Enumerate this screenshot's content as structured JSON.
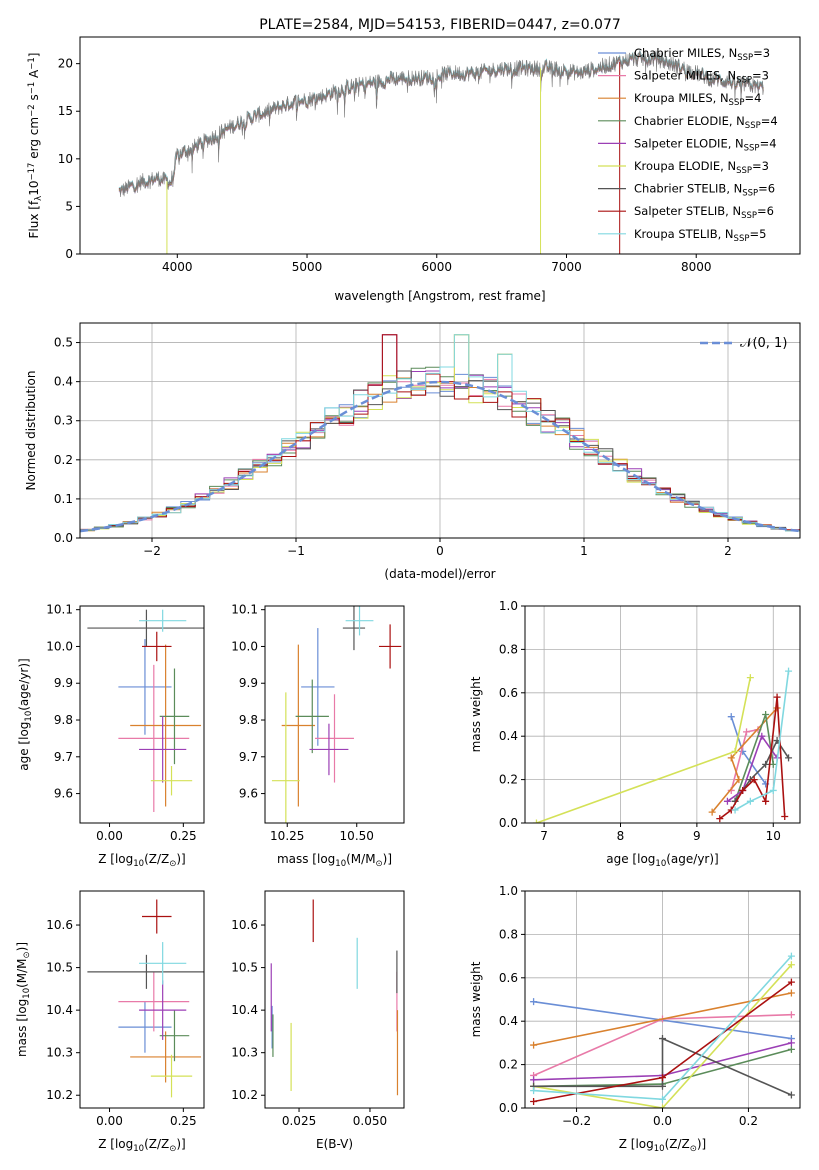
{
  "chart_data": [
    {
      "type": "line",
      "title": "PLATE=2584, MJD=54153, FIBERID=0447, z=0.077",
      "xlabel": "wavelength [Angstrom, rest frame]",
      "ylabel_parts": [
        "Flux [f",
        "λ",
        "10",
        "−17",
        " erg cm",
        "−2",
        " s",
        "−1",
        " A",
        "−1",
        "]"
      ],
      "xlim": [
        3250,
        8800
      ],
      "ylim": [
        0,
        22.8
      ],
      "xticks": [
        4000,
        5000,
        6000,
        7000,
        8000
      ],
      "yticks": [
        0,
        5,
        10,
        15,
        20
      ],
      "legend_placement": "upper-right",
      "series": [
        {
          "name": "Chabrier MILES, N",
          "nssp": "3",
          "color": "#6a8ed6"
        },
        {
          "name": "Salpeter MILES, N",
          "nssp": "3",
          "color": "#e87aa8"
        },
        {
          "name": "Kroupa MILES, N",
          "nssp": "4",
          "color": "#d9812e"
        },
        {
          "name": "Chabrier ELODIE, N",
          "nssp": "4",
          "color": "#5b8c5a"
        },
        {
          "name": "Salpeter ELODIE, N",
          "nssp": "4",
          "color": "#9b3fb5"
        },
        {
          "name": "Kroupa ELODIE, N",
          "nssp": "3",
          "color": "#d4e157"
        },
        {
          "name": "Chabrier STELIB, N",
          "nssp": "6",
          "color": "#555555"
        },
        {
          "name": "Salpeter STELIB, N",
          "nssp": "6",
          "color": "#aa1111"
        },
        {
          "name": "Kroupa STELIB, N",
          "nssp": "5",
          "color": "#80d8e0"
        }
      ],
      "continuum_anchor_points": {
        "x": [
          3550,
          3700,
          3850,
          3950,
          4000,
          4100,
          4300,
          4500,
          4700,
          4900,
          5100,
          5300,
          5500,
          5700,
          5900,
          6100,
          6300,
          6500,
          6700,
          6900,
          7100,
          7300,
          7500,
          7700,
          7900,
          8100,
          8300,
          8500
        ],
        "y": [
          6.5,
          7.5,
          8.0,
          7.5,
          10.5,
          11.0,
          12.5,
          14.0,
          15.0,
          16.0,
          16.5,
          17.5,
          18.0,
          18.5,
          18.5,
          19.0,
          19.0,
          19.5,
          19.5,
          19.5,
          19.0,
          19.8,
          20.5,
          20.5,
          19.5,
          18.5,
          18.0,
          17.5
        ]
      },
      "noise_amplitude": 0.9
    },
    {
      "type": "histogram",
      "xlabel": "(data-model)/error",
      "ylabel": "Normed distribution",
      "xlim": [
        -2.5,
        2.5
      ],
      "ylim": [
        0,
        0.55
      ],
      "xticks": [
        -2,
        -1,
        0,
        1,
        2
      ],
      "ytick_labels": [
        "0.0",
        "0.1",
        "0.2",
        "0.3",
        "0.4",
        "0.5"
      ],
      "grid": true,
      "bin_width": 0.1,
      "gaussian_label": "𝒩(0, 1)",
      "gaussian_color": "#6a8ed6",
      "legend_placement": "upper-right",
      "notable_peaks": [
        {
          "x": -0.35,
          "y": 0.52
        },
        {
          "x": 0.15,
          "y": 0.52
        },
        {
          "x": 0.45,
          "y": 0.47
        }
      ]
    },
    {
      "type": "scatter",
      "variant": "errorbar",
      "xlabel": "Z [log10(Z/Z⊙)]",
      "ylabel": "age  [log10(age/yr)]",
      "xlim": [
        -0.1,
        0.32
      ],
      "ylim": [
        9.52,
        10.11
      ],
      "xtick_labels": [
        "0.00",
        "0.25"
      ],
      "ytick_labels": [
        "9.6",
        "9.7",
        "9.8",
        "9.9",
        "10.0",
        "10.1"
      ],
      "points": [
        {
          "color": "#6a8ed6",
          "x": 0.12,
          "xerr": 0.09,
          "y": 9.89,
          "yerr": 0.13
        },
        {
          "color": "#e87aa8",
          "x": 0.15,
          "xerr": 0.12,
          "y": 9.75,
          "yerr": 0.2
        },
        {
          "color": "#d9812e",
          "x": 0.19,
          "xerr": 0.12,
          "y": 9.785,
          "yerr": 0.22
        },
        {
          "color": "#5b8c5a",
          "x": 0.22,
          "xerr": 0.05,
          "y": 9.81,
          "yerr": 0.13
        },
        {
          "color": "#9b3fb5",
          "x": 0.18,
          "xerr": 0.08,
          "y": 9.72,
          "yerr": 0.09
        },
        {
          "color": "#d4e157",
          "x": 0.21,
          "xerr": 0.07,
          "y": 9.635,
          "yerr": 0.04
        },
        {
          "color": "#555555",
          "x": 0.125,
          "xerr": 0.2,
          "y": 10.05,
          "yerr": 0.05
        },
        {
          "color": "#aa1111",
          "x": 0.16,
          "xerr": 0.05,
          "y": 10.0,
          "yerr": 0.04
        },
        {
          "color": "#80d8e0",
          "x": 0.18,
          "xerr": 0.08,
          "y": 10.07,
          "yerr": 0.03
        }
      ]
    },
    {
      "type": "scatter",
      "variant": "errorbar",
      "xlabel": "mass [log10(M/M⊙)]",
      "ylabel": "",
      "xlim": [
        10.17,
        10.67
      ],
      "ylim": [
        9.52,
        10.11
      ],
      "xtick_labels": [
        "10.25",
        "10.50"
      ],
      "ytick_labels": [
        "9.6",
        "9.7",
        "9.8",
        "9.9",
        "10.0",
        "10.1"
      ],
      "points": [
        {
          "color": "#6a8ed6",
          "x": 10.36,
          "xerr": 0.06,
          "y": 9.89,
          "yerr": 0.16
        },
        {
          "color": "#e87aa8",
          "x": 10.42,
          "xerr": 0.07,
          "y": 9.75,
          "yerr": 0.12
        },
        {
          "color": "#d9812e",
          "x": 10.29,
          "xerr": 0.06,
          "y": 9.785,
          "yerr": 0.22
        },
        {
          "color": "#5b8c5a",
          "x": 10.34,
          "xerr": 0.06,
          "y": 9.81,
          "yerr": 0.1
        },
        {
          "color": "#9b3fb5",
          "x": 10.4,
          "xerr": 0.07,
          "y": 9.72,
          "yerr": 0.07
        },
        {
          "color": "#d4e157",
          "x": 10.245,
          "xerr": 0.05,
          "y": 9.635,
          "yerr": 0.24
        },
        {
          "color": "#555555",
          "x": 10.49,
          "xerr": 0.04,
          "y": 10.05,
          "yerr": 0.06
        },
        {
          "color": "#aa1111",
          "x": 10.62,
          "xerr": 0.04,
          "y": 10.0,
          "yerr": 0.06
        },
        {
          "color": "#80d8e0",
          "x": 10.51,
          "xerr": 0.05,
          "y": 10.07,
          "yerr": 0.04
        }
      ]
    },
    {
      "type": "line",
      "xlabel": "age  [log10(age/yr)]",
      "ylabel": "mass weight",
      "xlim": [
        6.75,
        10.35
      ],
      "ylim": [
        0,
        1.0
      ],
      "xticks": [
        7,
        8,
        9,
        10
      ],
      "ytick_labels": [
        "0.0",
        "0.2",
        "0.4",
        "0.6",
        "0.8",
        "1.0"
      ],
      "grid": true,
      "series": [
        {
          "color": "#6a8ed6",
          "x": [
            9.45,
            9.6,
            9.9
          ],
          "y": [
            0.49,
            0.33,
            0.18
          ]
        },
        {
          "color": "#e87aa8",
          "x": [
            9.45,
            9.65,
            9.8
          ],
          "y": [
            0.15,
            0.42,
            0.43
          ]
        },
        {
          "color": "#d9812e",
          "x": [
            9.2,
            9.55,
            9.45,
            10.05
          ],
          "y": [
            0.05,
            0.2,
            0.3,
            0.53
          ]
        },
        {
          "color": "#5b8c5a",
          "x": [
            9.5,
            9.9,
            10.0
          ],
          "y": [
            0.1,
            0.5,
            0.27
          ]
        },
        {
          "color": "#9b3fb5",
          "x": [
            9.4,
            9.6,
            9.85,
            10.05
          ],
          "y": [
            0.1,
            0.15,
            0.4,
            0.3
          ]
        },
        {
          "color": "#d4e157",
          "x": [
            6.9,
            9.5,
            9.7
          ],
          "y": [
            0.0,
            0.33,
            0.67
          ]
        },
        {
          "color": "#555555",
          "x": [
            9.5,
            9.7,
            9.9,
            10.05,
            10.2
          ],
          "y": [
            0.1,
            0.2,
            0.27,
            0.38,
            0.3
          ]
        },
        {
          "color": "#aa1111",
          "x": [
            9.3,
            9.45,
            9.6,
            9.75,
            9.9,
            10.05,
            10.15
          ],
          "y": [
            0.02,
            0.06,
            0.15,
            0.2,
            0.1,
            0.58,
            0.03
          ]
        },
        {
          "color": "#80d8e0",
          "x": [
            9.5,
            9.7,
            10.0,
            10.2
          ],
          "y": [
            0.06,
            0.1,
            0.15,
            0.7
          ]
        }
      ]
    },
    {
      "type": "scatter",
      "variant": "errorbar",
      "xlabel": "Z [log10(Z/Z⊙)]",
      "ylabel": "mass [log10(M/M⊙)]",
      "xlim": [
        -0.1,
        0.32
      ],
      "ylim": [
        10.17,
        10.68
      ],
      "xtick_labels": [
        "0.00",
        "0.25"
      ],
      "ytick_labels": [
        "10.2",
        "10.3",
        "10.4",
        "10.5",
        "10.6"
      ],
      "points": [
        {
          "color": "#6a8ed6",
          "x": 0.12,
          "xerr": 0.09,
          "y": 10.36,
          "yerr": 0.06
        },
        {
          "color": "#e87aa8",
          "x": 0.15,
          "xerr": 0.12,
          "y": 10.42,
          "yerr": 0.07
        },
        {
          "color": "#d9812e",
          "x": 0.19,
          "xerr": 0.12,
          "y": 10.29,
          "yerr": 0.06
        },
        {
          "color": "#5b8c5a",
          "x": 0.22,
          "xerr": 0.05,
          "y": 10.34,
          "yerr": 0.06
        },
        {
          "color": "#9b3fb5",
          "x": 0.18,
          "xerr": 0.08,
          "y": 10.4,
          "yerr": 0.07
        },
        {
          "color": "#d4e157",
          "x": 0.21,
          "xerr": 0.07,
          "y": 10.245,
          "yerr": 0.05
        },
        {
          "color": "#555555",
          "x": 0.125,
          "xerr": 0.2,
          "y": 10.49,
          "yerr": 0.04
        },
        {
          "color": "#aa1111",
          "x": 0.16,
          "xerr": 0.05,
          "y": 10.62,
          "yerr": 0.04
        },
        {
          "color": "#80d8e0",
          "x": 0.18,
          "xerr": 0.08,
          "y": 10.51,
          "yerr": 0.05
        }
      ]
    },
    {
      "type": "scatter",
      "variant": "errorbar",
      "xlabel": "E(B-V)",
      "ylabel": "",
      "xlim": [
        0.013,
        0.062
      ],
      "ylim": [
        10.17,
        10.68
      ],
      "xtick_labels": [
        "0.025",
        "0.050"
      ],
      "ytick_labels": [
        "10.2",
        "10.3",
        "10.4",
        "10.5",
        "10.6"
      ],
      "points": [
        {
          "color": "#6a8ed6",
          "x": 0.0155,
          "xerr": 0,
          "y": 10.36,
          "yerr": 0.05
        },
        {
          "color": "#e87aa8",
          "x": 0.0595,
          "xerr": 0,
          "y": 10.42,
          "yerr": 0.07
        },
        {
          "color": "#d9812e",
          "x": 0.0597,
          "xerr": 0,
          "y": 10.3,
          "yerr": 0.1
        },
        {
          "color": "#5b8c5a",
          "x": 0.0158,
          "xerr": 0,
          "y": 10.34,
          "yerr": 0.05
        },
        {
          "color": "#9b3fb5",
          "x": 0.0152,
          "xerr": 0,
          "y": 10.43,
          "yerr": 0.08
        },
        {
          "color": "#d4e157",
          "x": 0.0222,
          "xerr": 0,
          "y": 10.29,
          "yerr": 0.08
        },
        {
          "color": "#555555",
          "x": 0.0595,
          "xerr": 0,
          "y": 10.49,
          "yerr": 0.05
        },
        {
          "color": "#aa1111",
          "x": 0.03,
          "xerr": 0,
          "y": 10.61,
          "yerr": 0.05
        },
        {
          "color": "#80d8e0",
          "x": 0.0455,
          "xerr": 0,
          "y": 10.51,
          "yerr": 0.06
        }
      ]
    },
    {
      "type": "line",
      "xlabel": "Z [log10(Z/Z⊙)]",
      "ylabel": "mass weight",
      "xlim": [
        -0.32,
        0.32
      ],
      "ylim": [
        0,
        1.0
      ],
      "xticks": [
        -0.2,
        0.0,
        0.2
      ],
      "xtick_labels": [
        "−0.2",
        "0.0",
        "0.2"
      ],
      "ytick_labels": [
        "0.0",
        "0.2",
        "0.4",
        "0.6",
        "0.8",
        "1.0"
      ],
      "grid": true,
      "series": [
        {
          "color": "#6a8ed6",
          "x": [
            -0.3,
            0.3
          ],
          "y": [
            0.49,
            0.32
          ]
        },
        {
          "color": "#e87aa8",
          "x": [
            -0.3,
            0.0,
            0.3
          ],
          "y": [
            0.15,
            0.41,
            0.43
          ]
        },
        {
          "color": "#d9812e",
          "x": [
            -0.3,
            0.3
          ],
          "y": [
            0.29,
            0.53
          ]
        },
        {
          "color": "#5b8c5a",
          "x": [
            -0.3,
            0.0,
            0.3
          ],
          "y": [
            0.1,
            0.11,
            0.27
          ]
        },
        {
          "color": "#9b3fb5",
          "x": [
            -0.3,
            0.0,
            0.3
          ],
          "y": [
            0.13,
            0.15,
            0.3
          ]
        },
        {
          "color": "#d4e157",
          "x": [
            -0.3,
            0.0,
            0.3
          ],
          "y": [
            0.1,
            0.0,
            0.66
          ]
        },
        {
          "color": "#555555",
          "x": [
            -0.3,
            0.0,
            0.0,
            0.3
          ],
          "y": [
            0.1,
            0.1,
            0.32,
            0.06
          ]
        },
        {
          "color": "#aa1111",
          "x": [
            -0.3,
            0.0,
            0.3
          ],
          "y": [
            0.03,
            0.14,
            0.58
          ]
        },
        {
          "color": "#80d8e0",
          "x": [
            -0.3,
            0.0,
            0.3
          ],
          "y": [
            0.08,
            0.04,
            0.7
          ]
        }
      ]
    }
  ]
}
